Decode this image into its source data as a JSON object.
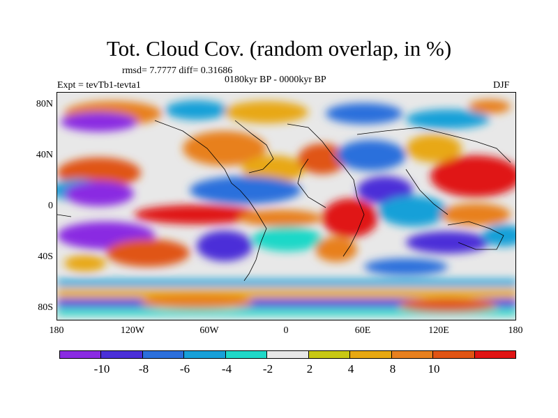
{
  "title": "Tot. Cloud Cov. (random overlap, in %)",
  "stats": "rmsd= 7.7777  diff= 0.31686",
  "period": "0180kyr BP - 0000kyr BP",
  "experiment": "Expt = tevTb1-tevta1",
  "season": "DJF",
  "lat_ticks": [
    "80N",
    "40N",
    "0",
    "40S",
    "80S"
  ],
  "lon_ticks": [
    "180",
    "120W",
    "60W",
    "0",
    "60E",
    "120E",
    "180"
  ],
  "colorbar": {
    "colors": [
      "#8a2be2",
      "#4b2fd8",
      "#2c6fdc",
      "#18a0d8",
      "#1fd8c8",
      "#e8e8e8",
      "#c8c814",
      "#e8a812",
      "#e8801e",
      "#e05414",
      "#e01414"
    ],
    "labels": [
      "-10",
      "-8",
      "-6",
      "-4",
      "-2",
      "2",
      "4",
      "8",
      "10"
    ]
  }
}
